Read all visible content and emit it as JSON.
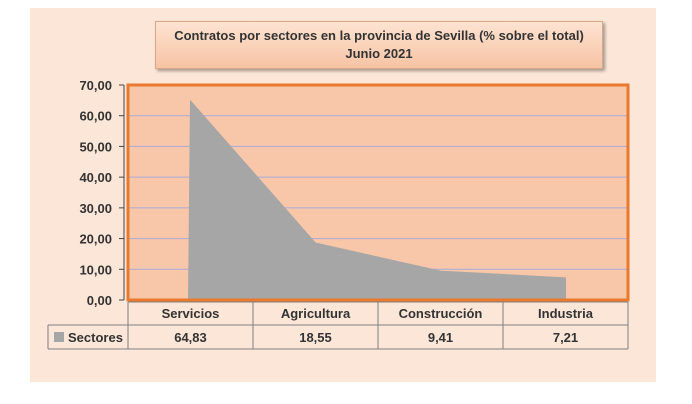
{
  "chart_data": {
    "type": "area",
    "title": "Contratos por sectores en la provincia de Sevilla (% sobre el total)",
    "subtitle": "Junio 2021",
    "categories": [
      "Servicios",
      "Agricultura",
      "Construcción",
      "Industria"
    ],
    "series": [
      {
        "name": "Sectores",
        "values": [
          64.83,
          18.55,
          9.41,
          7.21
        ],
        "color": "#a6a6a6"
      }
    ],
    "value_labels": [
      "64,83",
      "18,55",
      "9,41",
      "7,21"
    ],
    "y_ticks": [
      "0,00",
      "10,00",
      "20,00",
      "30,00",
      "40,00",
      "50,00",
      "60,00",
      "70,00"
    ],
    "ylim": [
      0,
      70
    ],
    "grid": true,
    "data_table": true,
    "legend_placement": "data-table",
    "colors": {
      "plot_bg": "#f8c7aa",
      "chart_bg": "#fbe6d7",
      "plot_border": "#e97a2d",
      "gridline": "#a8aad8"
    }
  }
}
